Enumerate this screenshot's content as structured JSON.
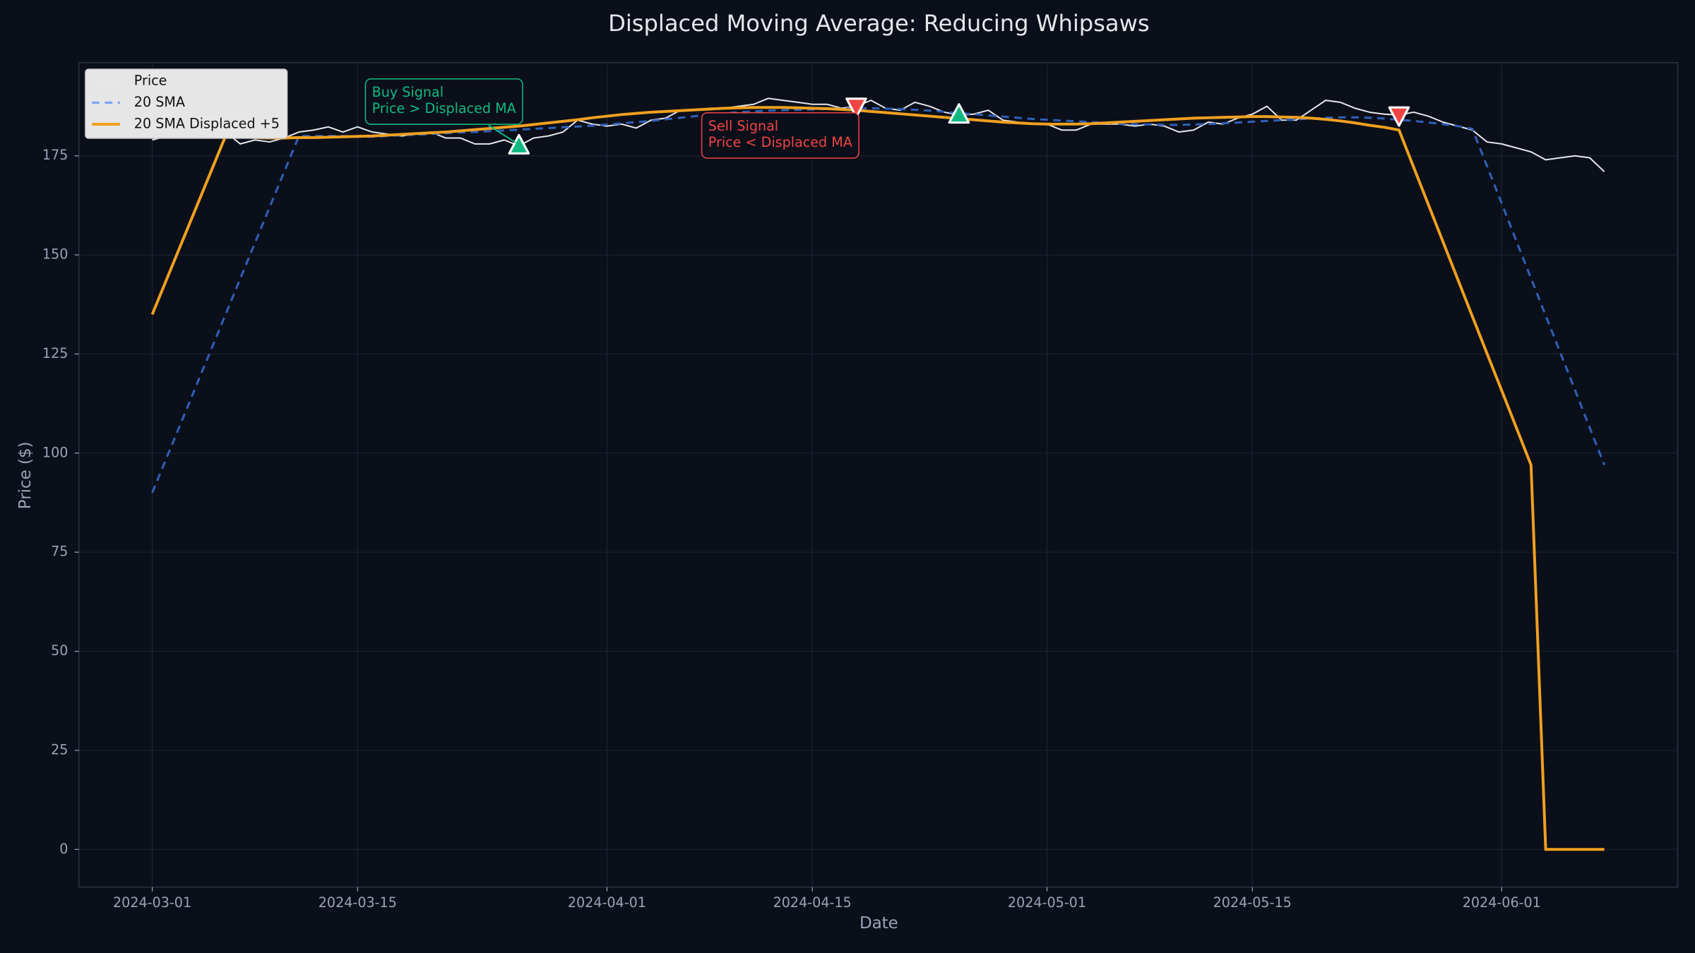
{
  "chart_data": {
    "type": "line",
    "title": "Displaced Moving Average: Reducing Whipsaws",
    "x_label": "Date",
    "y_label": "Price ($)",
    "x": [
      "2024-03-01",
      "2024-03-02",
      "2024-03-03",
      "2024-03-04",
      "2024-03-05",
      "2024-03-06",
      "2024-03-07",
      "2024-03-08",
      "2024-03-09",
      "2024-03-10",
      "2024-03-11",
      "2024-03-12",
      "2024-03-13",
      "2024-03-14",
      "2024-03-15",
      "2024-03-16",
      "2024-03-17",
      "2024-03-18",
      "2024-03-19",
      "2024-03-20",
      "2024-03-21",
      "2024-03-22",
      "2024-03-23",
      "2024-03-24",
      "2024-03-25",
      "2024-03-26",
      "2024-03-27",
      "2024-03-28",
      "2024-03-29",
      "2024-03-30",
      "2024-03-31",
      "2024-04-01",
      "2024-04-02",
      "2024-04-03",
      "2024-04-04",
      "2024-04-05",
      "2024-04-06",
      "2024-04-07",
      "2024-04-08",
      "2024-04-09",
      "2024-04-10",
      "2024-04-11",
      "2024-04-12",
      "2024-04-13",
      "2024-04-14",
      "2024-04-15",
      "2024-04-16",
      "2024-04-17",
      "2024-04-18",
      "2024-04-19",
      "2024-04-20",
      "2024-04-21",
      "2024-04-22",
      "2024-04-23",
      "2024-04-24",
      "2024-04-25",
      "2024-04-26",
      "2024-04-27",
      "2024-04-28",
      "2024-04-29",
      "2024-04-30",
      "2024-05-01",
      "2024-05-02",
      "2024-05-03",
      "2024-05-04",
      "2024-05-05",
      "2024-05-06",
      "2024-05-07",
      "2024-05-08",
      "2024-05-09",
      "2024-05-10",
      "2024-05-11",
      "2024-05-12",
      "2024-05-13",
      "2024-05-14",
      "2024-05-15",
      "2024-05-16",
      "2024-05-17",
      "2024-05-18",
      "2024-05-19",
      "2024-05-20",
      "2024-05-21",
      "2024-05-22",
      "2024-05-23",
      "2024-05-24",
      "2024-05-25",
      "2024-05-26",
      "2024-05-27",
      "2024-05-28",
      "2024-05-29",
      "2024-05-30",
      "2024-05-31",
      "2024-06-01",
      "2024-06-02",
      "2024-06-03",
      "2024-06-04",
      "2024-06-05",
      "2024-06-06",
      "2024-06-07",
      "2024-06-08"
    ],
    "series": [
      {
        "name": "Price",
        "color": "#e5e7eb",
        "width": 1.3,
        "dash": false,
        "values": [
          179,
          180,
          181,
          180,
          182,
          181,
          178,
          179,
          178.5,
          179.5,
          181,
          181.5,
          182.3,
          181,
          182.3,
          181,
          180.5,
          180,
          180.5,
          181,
          179.5,
          179.5,
          178,
          178,
          179,
          177.5,
          179.5,
          180,
          181,
          184,
          183,
          182.5,
          183,
          182,
          184,
          184.5,
          186.5,
          186.5,
          187,
          187,
          187.5,
          188,
          189.5,
          189,
          188.5,
          188,
          188,
          187,
          187.5,
          189,
          187,
          186.5,
          188.5,
          187.5,
          186,
          185.3,
          185.5,
          186.5,
          184,
          183.5,
          183,
          183,
          181.5,
          181.5,
          183,
          183,
          183,
          182.5,
          183,
          182.5,
          181,
          181.5,
          183.5,
          183,
          184.5,
          185.5,
          187.5,
          184,
          184,
          186.5,
          189,
          188.5,
          187,
          186,
          185.5,
          185.3,
          186,
          185,
          183.5,
          182.5,
          181.5,
          178.5,
          178,
          177,
          176,
          174,
          174.5,
          175,
          174.5,
          171
        ]
      },
      {
        "name": "20 SMA",
        "color": "#2f5fb8",
        "legend_color": "#7aa2f7",
        "width": 2,
        "dash": true,
        "values": [
          90,
          99,
          108,
          117,
          126,
          135,
          144,
          153,
          162,
          171,
          180,
          180,
          180,
          180,
          179.8,
          179.8,
          180,
          180.2,
          180.3,
          180.5,
          180.7,
          180.9,
          181,
          181.2,
          181.4,
          181.6,
          181.8,
          182,
          182.2,
          182.4,
          182.6,
          182.9,
          183.2,
          183.5,
          183.8,
          184.2,
          184.6,
          185,
          185.4,
          185.7,
          186,
          186.2,
          186.4,
          186.5,
          186.6,
          186.7,
          186.8,
          186.9,
          187,
          187,
          186.9,
          186.8,
          186.6,
          186.4,
          186.1,
          185.8,
          185.5,
          185.2,
          184.9,
          184.6,
          184.3,
          184.1,
          183.9,
          183.7,
          183.5,
          183.3,
          183.1,
          183,
          182.9,
          182.8,
          182.8,
          182.9,
          183,
          183.2,
          183.4,
          183.6,
          183.8,
          184,
          184.2,
          184.4,
          184.6,
          184.7,
          184.7,
          184.6,
          184.4,
          184.1,
          183.8,
          183.4,
          183,
          182.5,
          181.8,
          172.4,
          163,
          153.5,
          144.1,
          134.7,
          125.3,
          115.9,
          106.4,
          97
        ]
      },
      {
        "name": "20 SMA Displaced +5",
        "color": "#f0a020",
        "width": 2.6,
        "dash": false,
        "values": [
          135,
          144,
          153,
          162,
          171,
          180,
          179.8,
          179.6,
          179.5,
          179.5,
          179.6,
          179.6,
          179.7,
          179.8,
          179.9,
          180,
          180.2,
          180.4,
          180.6,
          180.8,
          181,
          181.3,
          181.6,
          181.9,
          182.2,
          182.5,
          182.9,
          183.3,
          183.7,
          184.1,
          184.6,
          185,
          185.4,
          185.7,
          186,
          186.2,
          186.4,
          186.6,
          186.8,
          187,
          187.1,
          187.2,
          187.2,
          187.2,
          187.1,
          187,
          186.9,
          186.7,
          186.5,
          186.2,
          185.9,
          185.6,
          185.3,
          185,
          184.7,
          184.4,
          184.1,
          183.8,
          183.5,
          183.3,
          183.1,
          183,
          183,
          183,
          183.1,
          183.3,
          183.5,
          183.7,
          183.9,
          184.1,
          184.3,
          184.5,
          184.6,
          184.7,
          184.8,
          184.9,
          184.9,
          184.8,
          184.7,
          184.5,
          184.2,
          183.8,
          183.3,
          182.7,
          182.2,
          181.5,
          172.1,
          162.7,
          153.3,
          143.9,
          134.5,
          125.1,
          115.8,
          106.4,
          97,
          0,
          0,
          0,
          0,
          0
        ]
      }
    ],
    "buy_signals": {
      "color": "#10b981",
      "x": [
        "2024-03-26",
        "2024-04-25"
      ],
      "values": [
        177.5,
        185.3
      ]
    },
    "sell_signals": {
      "color": "#ef4444",
      "x": [
        "2024-04-18",
        "2024-05-25"
      ],
      "values": [
        187.5,
        185.3
      ]
    },
    "annotations": [
      {
        "lines": [
          "Buy Signal",
          "Price > Displaced MA"
        ],
        "x": "2024-03-26",
        "y": 177.5,
        "color": "#10b981"
      },
      {
        "lines": [
          "Sell Signal",
          "Price < Displaced MA"
        ],
        "x": "2024-04-18",
        "y": 187.5,
        "color": "#ef4444"
      }
    ],
    "xlim": [
      "2024-02-25",
      "2024-06-13"
    ],
    "ylim": [
      -9.5,
      198.5
    ],
    "xticks": [
      "2024-03-01",
      "2024-03-15",
      "2024-04-01",
      "2024-04-15",
      "2024-05-01",
      "2024-05-15",
      "2024-06-01"
    ],
    "yticks": [
      0,
      25,
      50,
      75,
      100,
      125,
      150,
      175
    ],
    "grid": true,
    "legend": "upper left"
  }
}
